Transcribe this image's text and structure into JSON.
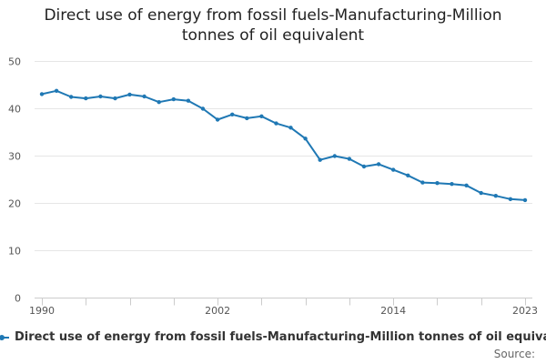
{
  "chart_data": {
    "type": "line",
    "title_lines": [
      "Direct use of energy from fossil fuels-Manufacturing-Million",
      "tonnes of oil equivalent"
    ],
    "xlabel": "",
    "ylabel": "",
    "xlim": [
      1990,
      2023
    ],
    "ylim": [
      0,
      50
    ],
    "yticks": [
      0,
      10,
      20,
      30,
      40,
      50
    ],
    "xticks_minor": [
      1990,
      1993,
      1996,
      1999,
      2002,
      2005,
      2008,
      2011,
      2014,
      2017,
      2020,
      2023
    ],
    "xtick_labels": [
      {
        "value": 1990,
        "label": "1990"
      },
      {
        "value": 2002,
        "label": "2002"
      },
      {
        "value": 2014,
        "label": "2014"
      },
      {
        "value": 2023,
        "label": "2023"
      }
    ],
    "grid": "horizontal",
    "legend_position": "bottom",
    "series": [
      {
        "name": "Direct use of energy from fossil fuels-Manufacturing-Million tonnes of oil equivalent",
        "color": "#1f78b4",
        "x": [
          1990,
          1991,
          1992,
          1993,
          1994,
          1995,
          1996,
          1997,
          1998,
          1999,
          2000,
          2001,
          2002,
          2003,
          2004,
          2005,
          2006,
          2007,
          2008,
          2009,
          2010,
          2011,
          2012,
          2013,
          2014,
          2015,
          2016,
          2017,
          2018,
          2019,
          2020,
          2021,
          2022,
          2023
        ],
        "values": [
          43.0,
          43.7,
          42.4,
          42.1,
          42.5,
          42.1,
          42.9,
          42.5,
          41.3,
          41.9,
          41.6,
          39.9,
          37.6,
          38.7,
          37.9,
          38.3,
          36.8,
          35.9,
          33.6,
          29.1,
          29.9,
          29.3,
          27.7,
          28.2,
          27.0,
          25.8,
          24.3,
          24.2,
          24.0,
          23.7,
          22.1,
          21.5,
          20.8,
          20.6
        ]
      }
    ]
  },
  "legend": {
    "label": "Direct use of energy from fossil fuels-Manufacturing-Million tonnes of oil equivalent"
  },
  "credits": {
    "text": "Source:"
  }
}
